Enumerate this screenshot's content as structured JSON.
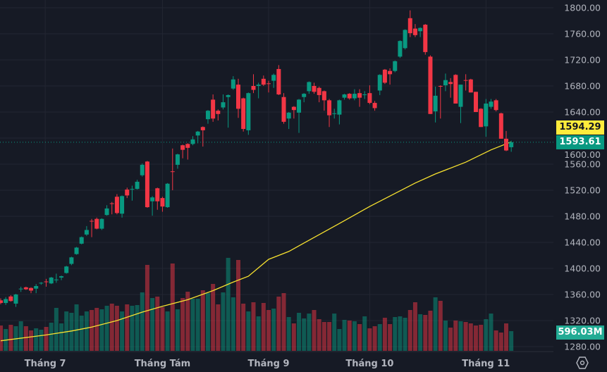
{
  "chart_data": {
    "type": "candlestick",
    "price_axis": {
      "ticks": [
        "1800.00",
        "1760.00",
        "1720.00",
        "1680.00",
        "1640.00",
        "1600.00",
        "1560.00",
        "1520.00",
        "1480.00",
        "1440.00",
        "1400.00",
        "1360.00",
        "1320.00",
        "1280.00"
      ],
      "range": [
        1280,
        1800
      ],
      "position": "right"
    },
    "time_axis": {
      "ticks": [
        {
          "label": "Tháng 7",
          "bar": 8.8
        },
        {
          "label": "Tháng Tám",
          "bar": 32
        },
        {
          "label": "Tháng 9",
          "bar": 53
        },
        {
          "label": "Tháng 10",
          "bar": 73
        },
        {
          "label": "Tháng 11",
          "bar": 96
        }
      ]
    },
    "grid": true,
    "colors": {
      "up": "#089981",
      "down": "#f23645",
      "ma": "#f7e12f",
      "background": "#161a25",
      "grid": "#232632"
    },
    "ohlc": [
      [
        1351,
        1354,
        1345,
        1347
      ],
      [
        1347,
        1356,
        1344,
        1353
      ],
      [
        1357,
        1359,
        1349,
        1350
      ],
      [
        1346,
        1361,
        1341,
        1360
      ],
      [
        1368,
        1372,
        1364,
        1369
      ],
      [
        1371,
        1372,
        1367,
        1368
      ],
      [
        1370,
        1371,
        1362,
        1366
      ],
      [
        1369,
        1376,
        1362,
        1373
      ],
      [
        1377,
        1379,
        1375,
        1378
      ],
      [
        1380,
        1384,
        1372,
        1379
      ],
      [
        1377,
        1387,
        1376,
        1386
      ],
      [
        1382,
        1392,
        1378,
        1383
      ],
      [
        1386,
        1389,
        1382,
        1388
      ],
      [
        1393,
        1404,
        1392,
        1403
      ],
      [
        1407,
        1418,
        1405,
        1417
      ],
      [
        1422,
        1433,
        1421,
        1432
      ],
      [
        1438,
        1449,
        1437,
        1448
      ],
      [
        1452,
        1465,
        1450,
        1459
      ],
      [
        1473,
        1476,
        1448,
        1472
      ],
      [
        1476,
        1478,
        1460,
        1461
      ],
      [
        1461,
        1477,
        1459,
        1476
      ],
      [
        1482,
        1497,
        1481,
        1492
      ],
      [
        1500,
        1502,
        1483,
        1499
      ],
      [
        1510,
        1514,
        1483,
        1485
      ],
      [
        1484,
        1512,
        1478,
        1511
      ],
      [
        1521,
        1524,
        1508,
        1512
      ],
      [
        1521,
        1527,
        1504,
        1522
      ],
      [
        1522,
        1536,
        1521,
        1533
      ],
      [
        1543,
        1561,
        1541,
        1559
      ],
      [
        1564,
        1565,
        1493,
        1494
      ],
      [
        1503,
        1511,
        1481,
        1509
      ],
      [
        1523,
        1524,
        1490,
        1503
      ],
      [
        1508,
        1510,
        1487,
        1495
      ],
      [
        1494,
        1531,
        1493,
        1530
      ],
      [
        1549,
        1584,
        1520,
        1548
      ],
      [
        1559,
        1576,
        1553,
        1575
      ],
      [
        1589,
        1590,
        1569,
        1582
      ],
      [
        1591,
        1592,
        1567,
        1585
      ],
      [
        1591,
        1603,
        1589,
        1598
      ],
      [
        1604,
        1611,
        1592,
        1610
      ],
      [
        1617,
        1618,
        1587,
        1612
      ],
      [
        1629,
        1643,
        1622,
        1642
      ],
      [
        1659,
        1667,
        1625,
        1630
      ],
      [
        1642,
        1644,
        1627,
        1637
      ],
      [
        1647,
        1667,
        1644,
        1655
      ],
      [
        1663,
        1667,
        1616,
        1666
      ],
      [
        1676,
        1695,
        1674,
        1690
      ],
      [
        1682,
        1691,
        1631,
        1645
      ],
      [
        1661,
        1662,
        1610,
        1614
      ],
      [
        1612,
        1670,
        1605,
        1669
      ],
      [
        1680,
        1698,
        1669,
        1674
      ],
      [
        1680,
        1685,
        1661,
        1682
      ],
      [
        1691,
        1696,
        1680,
        1682
      ],
      [
        1684,
        1688,
        1670,
        1683
      ],
      [
        1688,
        1699,
        1677,
        1697
      ],
      [
        1706,
        1712,
        1666,
        1667
      ],
      [
        1663,
        1669,
        1622,
        1625
      ],
      [
        1630,
        1640,
        1614,
        1639
      ],
      [
        1648,
        1649,
        1630,
        1643
      ],
      [
        1639,
        1660,
        1608,
        1659
      ],
      [
        1663,
        1669,
        1655,
        1668
      ],
      [
        1672,
        1687,
        1668,
        1686
      ],
      [
        1680,
        1685,
        1668,
        1671
      ],
      [
        1677,
        1679,
        1655,
        1666
      ],
      [
        1672,
        1673,
        1642,
        1658
      ],
      [
        1658,
        1660,
        1617,
        1635
      ],
      [
        1637,
        1645,
        1630,
        1638
      ],
      [
        1636,
        1659,
        1621,
        1658
      ],
      [
        1662,
        1668,
        1659,
        1667
      ],
      [
        1668,
        1669,
        1659,
        1661
      ],
      [
        1661,
        1675,
        1658,
        1668
      ],
      [
        1669,
        1675,
        1648,
        1662
      ],
      [
        1666,
        1672,
        1660,
        1667
      ],
      [
        1669,
        1681,
        1652,
        1654
      ],
      [
        1654,
        1657,
        1642,
        1646
      ],
      [
        1673,
        1698,
        1666,
        1697
      ],
      [
        1705,
        1706,
        1683,
        1685
      ],
      [
        1703,
        1707,
        1682,
        1698
      ],
      [
        1703,
        1719,
        1701,
        1718
      ],
      [
        1725,
        1750,
        1723,
        1749
      ],
      [
        1738,
        1767,
        1736,
        1766
      ],
      [
        1784,
        1796,
        1755,
        1761
      ],
      [
        1768,
        1775,
        1755,
        1758
      ],
      [
        1764,
        1770,
        1755,
        1769
      ],
      [
        1774,
        1775,
        1728,
        1732
      ],
      [
        1725,
        1727,
        1637,
        1637
      ],
      [
        1641,
        1679,
        1624,
        1665
      ],
      [
        1680,
        1681,
        1630,
        1679
      ],
      [
        1681,
        1699,
        1672,
        1689
      ],
      [
        1686,
        1692,
        1662,
        1683
      ],
      [
        1697,
        1698,
        1653,
        1653
      ],
      [
        1648,
        1682,
        1623,
        1682
      ],
      [
        1689,
        1698,
        1673,
        1688
      ],
      [
        1690,
        1691,
        1670,
        1670
      ],
      [
        1671,
        1671,
        1640,
        1640
      ],
      [
        1645,
        1646,
        1617,
        1617
      ],
      [
        1618,
        1660,
        1602,
        1653
      ],
      [
        1648,
        1660,
        1645,
        1656
      ],
      [
        1658,
        1660,
        1641,
        1643
      ],
      [
        1638,
        1639,
        1599,
        1599
      ],
      [
        1599,
        1611,
        1580,
        1581
      ],
      [
        1586,
        1596,
        1579,
        1593.61
      ]
    ],
    "volume_millions": [
      767,
      660,
      788,
      745,
      894,
      745,
      618,
      682,
      639,
      724,
      852,
      1299,
      830,
      1192,
      1150,
      1405,
      1065,
      1192,
      1235,
      1299,
      1256,
      1363,
      1427,
      1363,
      1192,
      1405,
      1363,
      1384,
      1767,
      2598,
      1597,
      1640,
      1320,
      1192,
      2640,
      1256,
      1597,
      1788,
      1576,
      1576,
      1831,
      1746,
      2023,
      1405,
      1767,
      2811,
      1618,
      2747,
      1427,
      1192,
      1469,
      1043,
      1448,
      1235,
      1278,
      1640,
      1746,
      1022,
      830,
      1150,
      980,
      1128,
      1235,
      958,
      873,
      873,
      1128,
      660,
      937,
      916,
      894,
      809,
      1043,
      681,
      745,
      809,
      1001,
      809,
      1022,
      1043,
      1001,
      1235,
      1469,
      1107,
      1086,
      1214,
      1618,
      1512,
      916,
      703,
      916,
      894,
      873,
      830,
      767,
      788,
      958,
      1128,
      618,
      554,
      830,
      596.03
    ],
    "moving_average": {
      "points": [
        [
          0,
          1289
        ],
        [
          9,
          1298
        ],
        [
          14,
          1304
        ],
        [
          18,
          1310
        ],
        [
          23,
          1320
        ],
        [
          28,
          1333
        ],
        [
          32,
          1342
        ],
        [
          37,
          1352
        ],
        [
          42,
          1366
        ],
        [
          46,
          1379
        ],
        [
          49,
          1388
        ],
        [
          53,
          1414
        ],
        [
          57,
          1426
        ],
        [
          60,
          1439
        ],
        [
          67,
          1469
        ],
        [
          73,
          1495
        ],
        [
          78,
          1515
        ],
        [
          82,
          1531
        ],
        [
          86,
          1545
        ],
        [
          92,
          1563
        ],
        [
          97,
          1582
        ],
        [
          101,
          1594.29
        ]
      ]
    },
    "labels": {
      "ma_value": "1594.29",
      "last_price": "1593.61",
      "last_volume": "596.03M"
    }
  },
  "settings_icon": "gear-hexagon-icon"
}
